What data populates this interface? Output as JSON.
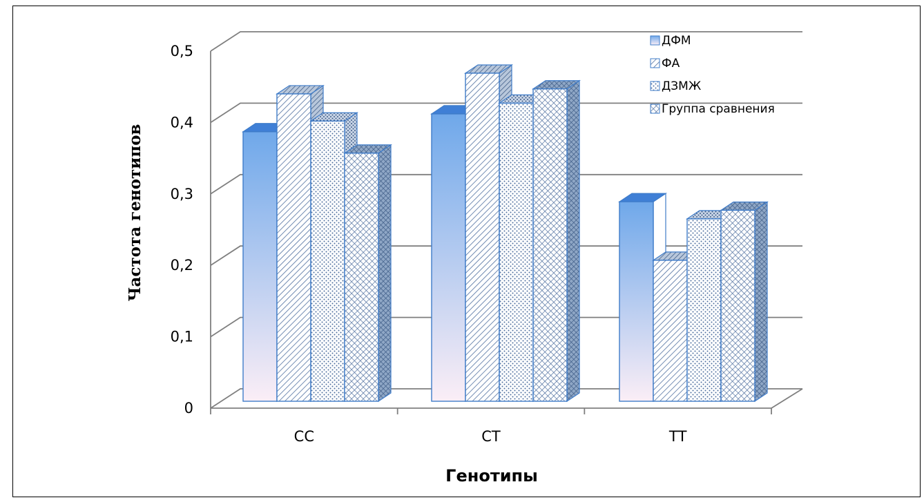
{
  "chart_data": {
    "type": "bar",
    "title": "",
    "xlabel": "Генотипы",
    "ylabel": "Частота генотипов",
    "categories": [
      "СС",
      "СТ",
      "ТТ"
    ],
    "series": [
      {
        "name": "ДФМ",
        "values": [
          0.36,
          0.385,
          0.262
        ]
      },
      {
        "name": "ФА",
        "values": [
          0.413,
          0.442,
          0.18
        ]
      },
      {
        "name": "ДЗМЖ",
        "values": [
          0.375,
          0.4,
          0.238
        ]
      },
      {
        "name": "Группа сравнения",
        "values": [
          0.33,
          0.42,
          0.25
        ]
      }
    ],
    "ylim": [
      0,
      0.5
    ],
    "yticks": [
      "0",
      "0,1",
      "0,2",
      "0,3",
      "0,4",
      "0,5"
    ],
    "grid": true,
    "legend_position": "top-right",
    "three_d": true,
    "colors": {
      "series_fill_top": "#6fa8ea",
      "series_fill_bottom": "#fbeef6",
      "outline": "#3f7cc9",
      "hatch": "#4f6f9f",
      "grid": "#7f7f7f"
    }
  }
}
